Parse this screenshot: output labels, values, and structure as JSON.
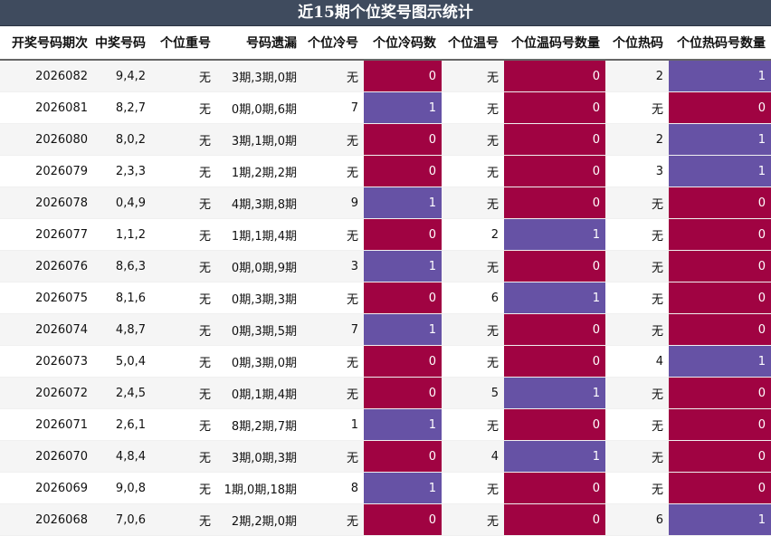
{
  "title": "近15期个位奖号图示统计",
  "headers": [
    "开奖号码期次",
    "中奖号码",
    "个位重号",
    "号码遗漏",
    "个位冷号",
    "个位冷码数",
    "个位温号",
    "个位温码号数量",
    "个位热码",
    "个位热码号数量"
  ],
  "colors": {
    "one": "#6652a5",
    "zero": "#a00342",
    "header_bg": "#3f4b5e"
  },
  "rows": [
    {
      "issue": "2026082",
      "numbers": "9,4,2",
      "repeat": "无",
      "omission": "3期,3期,0期",
      "cold": "无",
      "cold_count": "0",
      "warm": "无",
      "warm_count": "0",
      "hot": "2",
      "hot_count": "1"
    },
    {
      "issue": "2026081",
      "numbers": "8,2,7",
      "repeat": "无",
      "omission": "0期,0期,6期",
      "cold": "7",
      "cold_count": "1",
      "warm": "无",
      "warm_count": "0",
      "hot": "无",
      "hot_count": "0"
    },
    {
      "issue": "2026080",
      "numbers": "8,0,2",
      "repeat": "无",
      "omission": "3期,1期,0期",
      "cold": "无",
      "cold_count": "0",
      "warm": "无",
      "warm_count": "0",
      "hot": "2",
      "hot_count": "1"
    },
    {
      "issue": "2026079",
      "numbers": "2,3,3",
      "repeat": "无",
      "omission": "1期,2期,2期",
      "cold": "无",
      "cold_count": "0",
      "warm": "无",
      "warm_count": "0",
      "hot": "3",
      "hot_count": "1"
    },
    {
      "issue": "2026078",
      "numbers": "0,4,9",
      "repeat": "无",
      "omission": "4期,3期,8期",
      "cold": "9",
      "cold_count": "1",
      "warm": "无",
      "warm_count": "0",
      "hot": "无",
      "hot_count": "0"
    },
    {
      "issue": "2026077",
      "numbers": "1,1,2",
      "repeat": "无",
      "omission": "1期,1期,4期",
      "cold": "无",
      "cold_count": "0",
      "warm": "2",
      "warm_count": "1",
      "hot": "无",
      "hot_count": "0"
    },
    {
      "issue": "2026076",
      "numbers": "8,6,3",
      "repeat": "无",
      "omission": "0期,0期,9期",
      "cold": "3",
      "cold_count": "1",
      "warm": "无",
      "warm_count": "0",
      "hot": "无",
      "hot_count": "0"
    },
    {
      "issue": "2026075",
      "numbers": "8,1,6",
      "repeat": "无",
      "omission": "0期,3期,3期",
      "cold": "无",
      "cold_count": "0",
      "warm": "6",
      "warm_count": "1",
      "hot": "无",
      "hot_count": "0"
    },
    {
      "issue": "2026074",
      "numbers": "4,8,7",
      "repeat": "无",
      "omission": "0期,3期,5期",
      "cold": "7",
      "cold_count": "1",
      "warm": "无",
      "warm_count": "0",
      "hot": "无",
      "hot_count": "0"
    },
    {
      "issue": "2026073",
      "numbers": "5,0,4",
      "repeat": "无",
      "omission": "0期,3期,0期",
      "cold": "无",
      "cold_count": "0",
      "warm": "无",
      "warm_count": "0",
      "hot": "4",
      "hot_count": "1"
    },
    {
      "issue": "2026072",
      "numbers": "2,4,5",
      "repeat": "无",
      "omission": "0期,1期,4期",
      "cold": "无",
      "cold_count": "0",
      "warm": "5",
      "warm_count": "1",
      "hot": "无",
      "hot_count": "0"
    },
    {
      "issue": "2026071",
      "numbers": "2,6,1",
      "repeat": "无",
      "omission": "8期,2期,7期",
      "cold": "1",
      "cold_count": "1",
      "warm": "无",
      "warm_count": "0",
      "hot": "无",
      "hot_count": "0"
    },
    {
      "issue": "2026070",
      "numbers": "4,8,4",
      "repeat": "无",
      "omission": "3期,0期,3期",
      "cold": "无",
      "cold_count": "0",
      "warm": "4",
      "warm_count": "1",
      "hot": "无",
      "hot_count": "0"
    },
    {
      "issue": "2026069",
      "numbers": "9,0,8",
      "repeat": "无",
      "omission": "1期,0期,18期",
      "cold": "8",
      "cold_count": "1",
      "warm": "无",
      "warm_count": "0",
      "hot": "无",
      "hot_count": "0"
    },
    {
      "issue": "2026068",
      "numbers": "7,0,6",
      "repeat": "无",
      "omission": "2期,2期,0期",
      "cold": "无",
      "cold_count": "0",
      "warm": "无",
      "warm_count": "0",
      "hot": "6",
      "hot_count": "1"
    }
  ]
}
